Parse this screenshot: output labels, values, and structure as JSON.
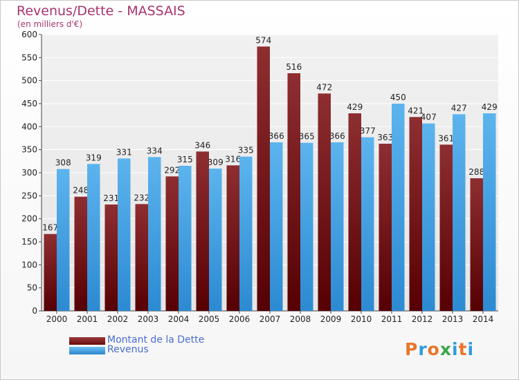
{
  "title": "Revenus/Dette - MASSAIS",
  "subtitle": "(en milliers d'€)",
  "chart_data": {
    "type": "bar",
    "categories": [
      "2000",
      "2001",
      "2002",
      "2003",
      "2004",
      "2005",
      "2006",
      "2007",
      "2008",
      "2009",
      "2010",
      "2011",
      "2012",
      "2013",
      "2014"
    ],
    "series": [
      {
        "name": "Montant de la Dette",
        "color": "#7a1a1d",
        "values": [
          167,
          248,
          231,
          232,
          292,
          346,
          316,
          574,
          516,
          472,
          429,
          363,
          421,
          361,
          288
        ],
        "labels": [
          "167",
          "248",
          "231",
          "232",
          "292",
          "346",
          "316",
          "574",
          "516",
          "472",
          "429",
          "363",
          "421",
          "361",
          "288"
        ]
      },
      {
        "name": "Revenus",
        "color": "#3a9de0",
        "values": [
          308,
          319,
          331,
          334,
          315,
          309,
          335,
          366,
          365,
          366,
          377,
          450,
          407,
          427,
          429
        ],
        "labels": [
          "308",
          "319",
          "331",
          "334",
          "315",
          "309",
          "335",
          "366",
          "365",
          "366",
          "377",
          "450",
          "407",
          "427",
          "429"
        ]
      }
    ],
    "ylim": [
      0,
      600
    ],
    "yticks": [
      "0",
      "50",
      "100",
      "150",
      "200",
      "250",
      "300",
      "350",
      "400",
      "450",
      "500",
      "550",
      "600"
    ],
    "grid": true,
    "legend_position": "bottom-left"
  },
  "logo": {
    "letters": [
      "P",
      "r",
      "o",
      "x",
      "i",
      "t",
      "i"
    ]
  }
}
